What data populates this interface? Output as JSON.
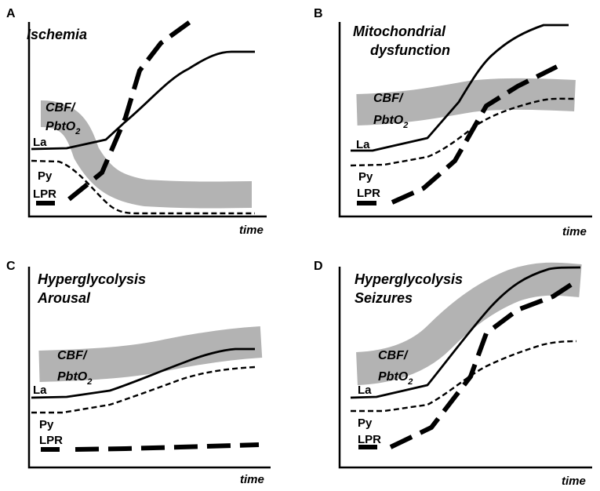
{
  "figure": {
    "panels": [
      {
        "id": "A",
        "label": "A",
        "title_lines": [
          "Ischemia"
        ],
        "band_label": [
          "CBF/",
          "PbtO",
          "2"
        ],
        "series_labels": {
          "la": "La",
          "py": "Py",
          "lpr": "LPR"
        },
        "time_label": "time"
      },
      {
        "id": "B",
        "label": "B",
        "title_lines": [
          "Mitochondrial",
          "dysfunction"
        ],
        "band_label": [
          "CBF/",
          "PbtO",
          "2"
        ],
        "series_labels": {
          "la": "La",
          "py": "Py",
          "lpr": "LPR"
        },
        "time_label": "time"
      },
      {
        "id": "C",
        "label": "C",
        "title_lines": [
          "Hyperglycolysis",
          "Arousal"
        ],
        "band_label": [
          "CBF/",
          "PbtO",
          "2"
        ],
        "series_labels": {
          "la": "La",
          "py": "Py",
          "lpr": "LPR"
        },
        "time_label": "time"
      },
      {
        "id": "D",
        "label": "D",
        "title_lines": [
          "Hyperglycolysis",
          "Seizures"
        ],
        "band_label": [
          "CBF/",
          "PbtO",
          "2"
        ],
        "series_labels": {
          "la": "La",
          "py": "Py",
          "lpr": "LPR"
        },
        "time_label": "time"
      }
    ]
  },
  "colors": {
    "band": "#b3b3b3",
    "line": "#000000"
  }
}
